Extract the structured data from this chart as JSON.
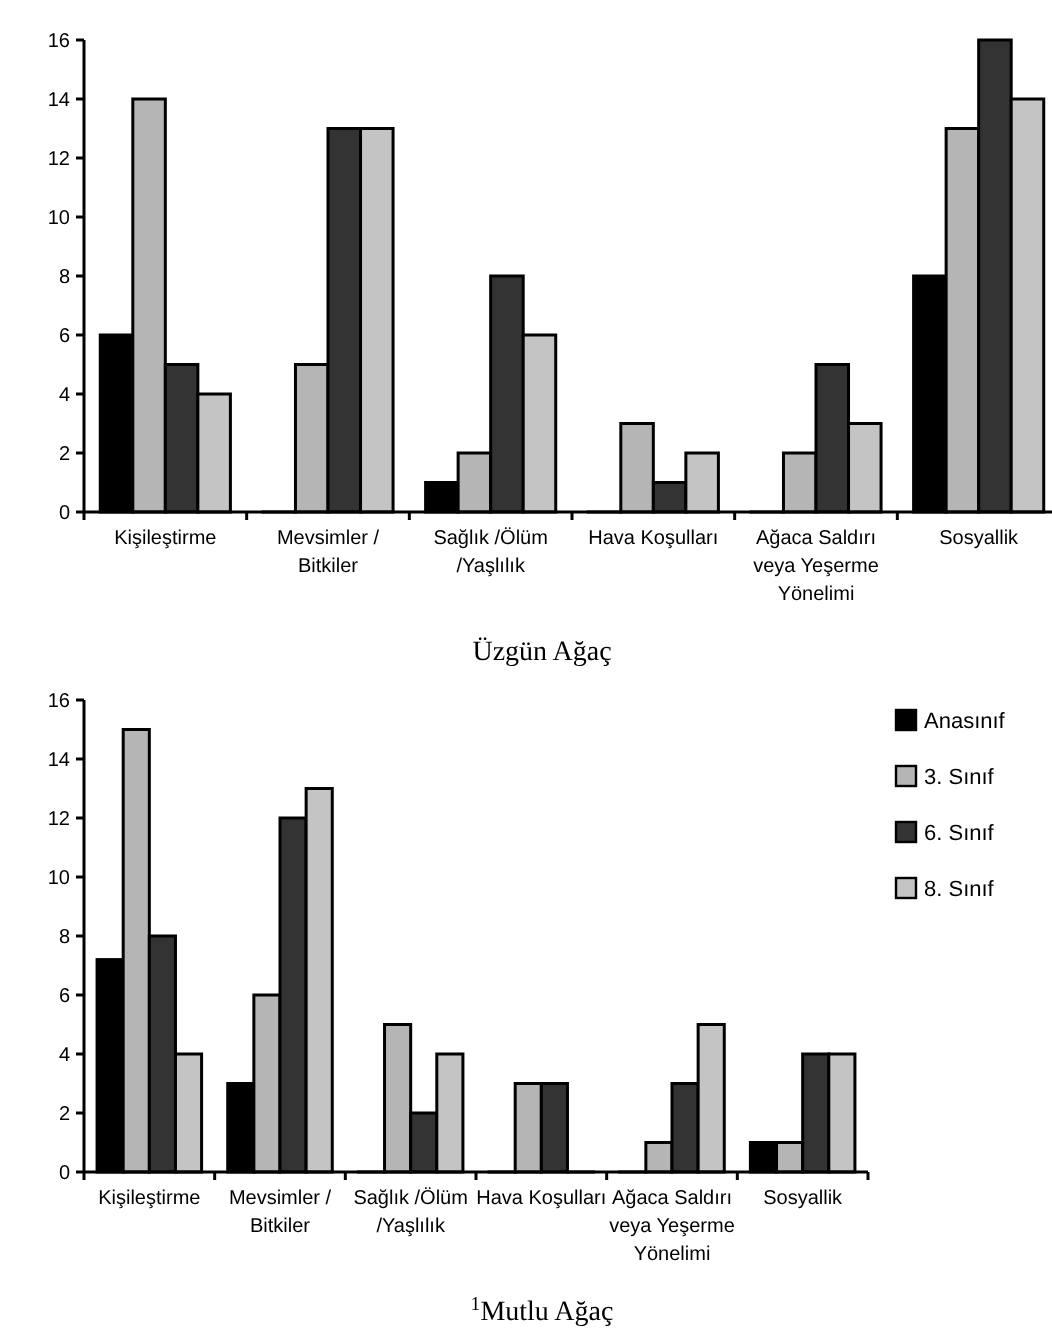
{
  "chart_data": [
    {
      "type": "bar",
      "title": "Üzgün Ağaç",
      "categories": [
        "Kişileştirme",
        "Mevsimler /\nBitkiler",
        "Sağlık /Ölüm\n/Yaşlılık",
        "Hava Koşulları",
        "Ağaca Saldırı\nveya Yeşerme\nYönelimi",
        "Sosyallik"
      ],
      "ylim": [
        0,
        16
      ],
      "yticks": [
        0,
        2,
        4,
        6,
        8,
        10,
        12,
        14,
        16
      ],
      "grid": false,
      "legend": false,
      "series": [
        {
          "color": "#000000",
          "values": [
            6,
            0,
            1,
            0,
            0,
            8
          ]
        },
        {
          "color": "#b5b5b5",
          "values": [
            14,
            5,
            2,
            3,
            2,
            13
          ]
        },
        {
          "color": "#333333",
          "values": [
            5,
            13,
            8,
            1,
            5,
            16
          ]
        },
        {
          "color": "#c4c4c4",
          "values": [
            4,
            13,
            6,
            2,
            3,
            14
          ]
        }
      ]
    },
    {
      "type": "bar",
      "title": "$^{1}$Mutlu Ağaç",
      "categories": [
        "Kişileştirme",
        "Mevsimler /\nBitkiler",
        "Sağlık /Ölüm\n/Yaşlılık",
        "Hava Koşulları",
        "Ağaca Saldırı\nveya Yeşerme\nYönelimi",
        "Sosyallik"
      ],
      "ylim": [
        0,
        16
      ],
      "yticks": [
        0,
        2,
        4,
        6,
        8,
        10,
        12,
        14,
        16
      ],
      "grid": false,
      "legend": "right",
      "series": [
        {
          "name": "Anasınıf",
          "color": "#000000",
          "values": [
            7.2,
            3,
            0,
            0,
            0,
            1
          ]
        },
        {
          "name": "3. Sınıf",
          "color": "#b5b5b5",
          "values": [
            15,
            6,
            5,
            3,
            1,
            1
          ]
        },
        {
          "name": "6. Sınıf",
          "color": "#333333",
          "values": [
            8,
            12,
            2,
            3,
            3,
            4
          ]
        },
        {
          "name": "8. Sınıf",
          "color": "#c4c4c4",
          "values": [
            4,
            13,
            4,
            0,
            5,
            4
          ]
        }
      ]
    }
  ]
}
